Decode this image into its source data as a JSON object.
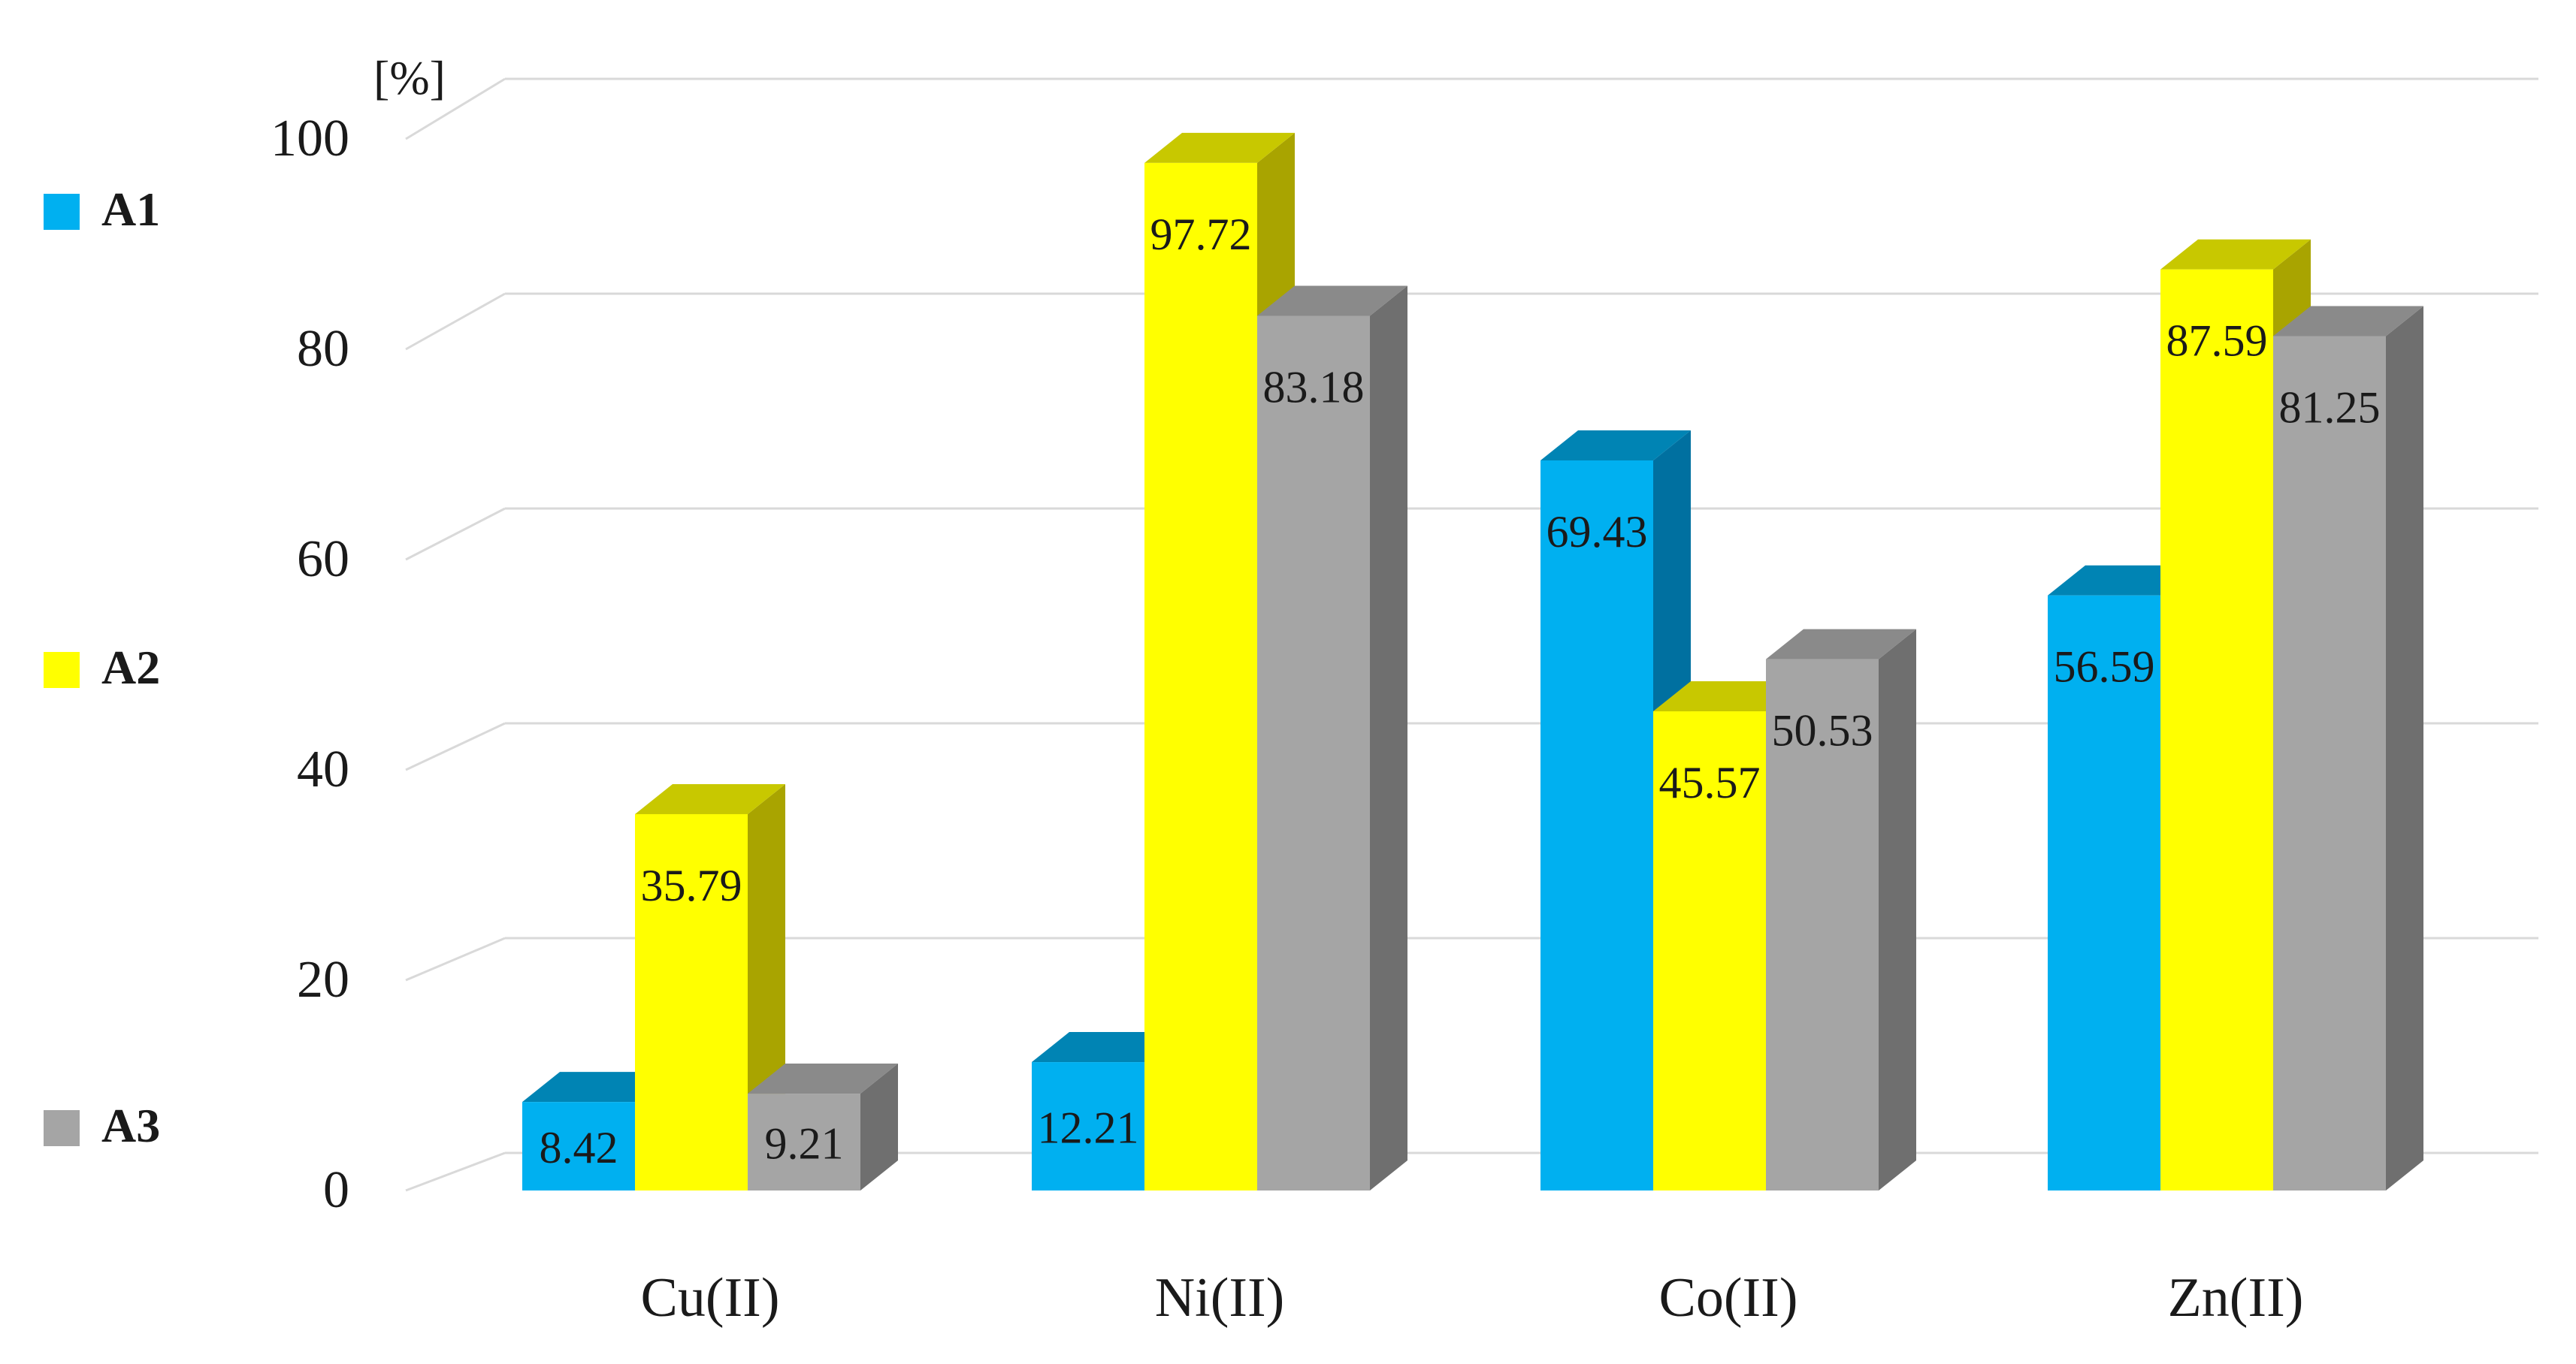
{
  "chart_data": {
    "type": "bar",
    "categories": [
      "Cu(II)",
      "Ni(II)",
      "Co(II)",
      "Zn(II)"
    ],
    "series": [
      {
        "name": "A1",
        "values": [
          8.42,
          12.21,
          69.43,
          56.59
        ],
        "color": "#00b0f0",
        "top_color": "#0084b4",
        "side_color": "#0070a0"
      },
      {
        "name": "A2",
        "values": [
          35.79,
          97.72,
          45.57,
          87.59
        ],
        "color": "#ffff00",
        "top_color": "#c8c800",
        "side_color": "#a9a400"
      },
      {
        "name": "A3",
        "values": [
          9.21,
          83.18,
          50.53,
          81.25
        ],
        "color": "#a5a5a5",
        "top_color": "#8a8a8a",
        "side_color": "#6f6f6f"
      }
    ],
    "y_ticks": [
      "0",
      "20",
      "40",
      "60",
      "80",
      "100"
    ],
    "ylim": [
      0,
      100
    ],
    "unit_label": "[%]",
    "grid": true,
    "legend_position": "left",
    "style": "3d-clustered-column"
  }
}
